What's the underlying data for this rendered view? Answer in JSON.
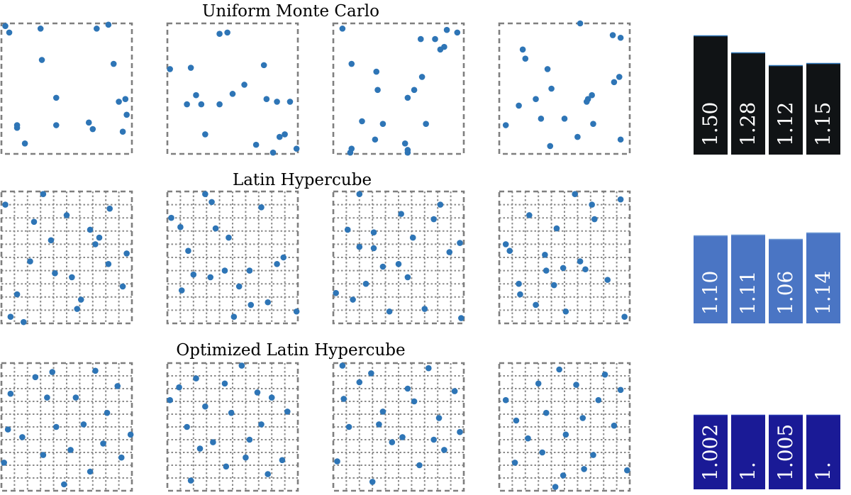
{
  "chart_data": [
    {
      "type": "scatter",
      "title": "Uniform Monte Carlo",
      "grid": false,
      "point_color": "#2e75b6",
      "xlim": [
        0,
        1
      ],
      "ylim": [
        0,
        1
      ],
      "panels": [
        {
          "x": [
            0.03,
            0.06,
            0.3,
            0.73,
            0.82,
            0.31,
            0.86,
            0.42,
            0.95,
            0.9,
            0.96,
            0.12,
            0.12,
            0.42,
            0.67,
            0.7,
            0.93,
            0.18
          ],
          "y": [
            0.98,
            0.93,
            0.96,
            0.96,
            0.99,
            0.72,
            0.69,
            0.43,
            0.42,
            0.4,
            0.3,
            0.22,
            0.2,
            0.22,
            0.24,
            0.19,
            0.17,
            0.08
          ]
        },
        {
          "x": [
            0.4,
            0.46,
            0.02,
            0.18,
            0.74,
            0.59,
            0.5,
            0.22,
            0.15,
            0.26,
            0.4,
            0.76,
            0.84,
            0.94,
            0.29,
            0.9,
            0.86,
            0.68,
            0.81,
            0.99
          ],
          "y": [
            0.92,
            0.93,
            0.65,
            0.66,
            0.68,
            0.53,
            0.46,
            0.45,
            0.38,
            0.38,
            0.38,
            0.42,
            0.4,
            0.4,
            0.15,
            0.15,
            0.13,
            0.07,
            0.01,
            0.04
          ]
        },
        {
          "x": [
            0.07,
            0.87,
            0.95,
            0.67,
            0.78,
            0.82,
            0.85,
            0.14,
            0.33,
            0.68,
            0.34,
            0.62,
            0.57,
            0.22,
            0.38,
            0.71,
            0.32,
            0.55,
            0.14,
            0.57,
            0.57,
            0.13
          ],
          "y": [
            0.96,
            0.95,
            0.93,
            0.88,
            0.88,
            0.8,
            0.82,
            0.69,
            0.63,
            0.59,
            0.49,
            0.49,
            0.43,
            0.25,
            0.23,
            0.23,
            0.11,
            0.08,
            0.04,
            0.01,
            0.03,
            0.01
          ]
        },
        {
          "x": [
            0.62,
            0.87,
            0.93,
            0.18,
            0.2,
            0.37,
            0.92,
            0.88,
            0.4,
            0.71,
            0.28,
            0.68,
            0.67,
            0.15,
            0.32,
            0.5,
            0.05,
            0.72,
            0.6,
            0.93,
            0.39
          ],
          "y": [
            1.0,
            0.91,
            0.89,
            0.8,
            0.73,
            0.65,
            0.59,
            0.55,
            0.5,
            0.45,
            0.42,
            0.42,
            0.4,
            0.37,
            0.27,
            0.27,
            0.22,
            0.23,
            0.13,
            0.11,
            0.06
          ]
        }
      ]
    },
    {
      "type": "bar",
      "series_label": "Uniform Monte Carlo",
      "color": "#101315",
      "values": [
        1.5,
        1.28,
        1.12,
        1.15
      ],
      "labels": [
        "1.50",
        "1.28",
        "1.12",
        "1.15"
      ]
    },
    {
      "type": "scatter",
      "title": "Latin Hypercube",
      "grid": true,
      "point_color": "#2e75b6",
      "xlim": [
        0,
        1
      ],
      "ylim": [
        0,
        1
      ],
      "panels": [
        {
          "x": [
            0.32,
            0.03,
            0.83,
            0.5,
            0.25,
            0.68,
            0.38,
            0.75,
            0.72,
            0.96,
            0.22,
            0.82,
            0.41,
            0.54,
            0.93,
            0.12,
            0.61,
            0.58,
            0.07,
            0.17
          ],
          "y": [
            0.98,
            0.9,
            0.87,
            0.82,
            0.77,
            0.71,
            0.63,
            0.65,
            0.6,
            0.53,
            0.47,
            0.45,
            0.38,
            0.35,
            0.28,
            0.22,
            0.18,
            0.11,
            0.05,
            0.01
          ]
        },
        {
          "x": [
            0.29,
            0.34,
            0.72,
            0.03,
            0.1,
            0.37,
            0.47,
            0.16,
            0.89,
            0.84,
            0.2,
            0.44,
            0.63,
            0.33,
            0.55,
            0.11,
            0.77,
            0.64,
            0.51,
            0.99
          ],
          "y": [
            0.98,
            0.92,
            0.88,
            0.8,
            0.73,
            0.72,
            0.65,
            0.55,
            0.5,
            0.45,
            0.37,
            0.4,
            0.4,
            0.35,
            0.28,
            0.25,
            0.16,
            0.14,
            0.05,
            0.09
          ]
        },
        {
          "x": [
            0.2,
            0.82,
            0.52,
            0.77,
            0.11,
            0.31,
            0.61,
            0.97,
            0.2,
            0.31,
            0.89,
            0.38,
            0.5,
            0.57,
            0.25,
            0.02,
            0.15,
            0.43,
            0.7,
            0.98
          ],
          "y": [
            0.98,
            0.9,
            0.83,
            0.79,
            0.71,
            0.69,
            0.65,
            0.61,
            0.58,
            0.57,
            0.54,
            0.43,
            0.45,
            0.35,
            0.3,
            0.23,
            0.18,
            0.09,
            0.11,
            0.04
          ]
        },
        {
          "x": [
            0.58,
            0.71,
            0.93,
            0.23,
            0.73,
            0.44,
            0.05,
            0.08,
            0.35,
            0.62,
            0.49,
            0.36,
            0.66,
            0.15,
            0.83,
            0.42,
            0.16,
            0.28,
            0.51,
            0.96
          ],
          "y": [
            0.98,
            0.9,
            0.94,
            0.82,
            0.79,
            0.72,
            0.6,
            0.55,
            0.52,
            0.47,
            0.42,
            0.4,
            0.41,
            0.3,
            0.33,
            0.29,
            0.22,
            0.14,
            0.09,
            0.05
          ]
        }
      ]
    },
    {
      "type": "bar",
      "series_label": "Latin Hypercube",
      "color": "#4a75c4",
      "values": [
        1.1,
        1.11,
        1.06,
        1.14
      ],
      "labels": [
        "1.10",
        "1.11",
        "1.06",
        "1.14"
      ]
    },
    {
      "type": "scatter",
      "title": "Optimized Latin Hypercube",
      "grid": true,
      "point_color": "#2e75b6",
      "xlim": [
        0,
        1
      ],
      "ylim": [
        0,
        1
      ],
      "panels": [
        {
          "x": [
            0.39,
            0.72,
            0.26,
            0.89,
            0.07,
            0.35,
            0.57,
            0.81,
            0.42,
            0.63,
            0.05,
            0.99,
            0.16,
            0.78,
            0.53,
            0.32,
            0.92,
            0.02,
            0.68,
            0.48
          ],
          "y": [
            0.93,
            0.94,
            0.89,
            0.82,
            0.76,
            0.73,
            0.73,
            0.61,
            0.5,
            0.52,
            0.48,
            0.44,
            0.42,
            0.37,
            0.32,
            0.28,
            0.26,
            0.22,
            0.15,
            0.05
          ]
        },
        {
          "x": [
            0.57,
            0.22,
            0.44,
            0.09,
            0.69,
            0.02,
            0.8,
            0.29,
            0.92,
            0.49,
            0.15,
            0.72,
            0.35,
            0.63,
            0.25,
            0.6,
            0.88,
            0.45,
            0.77,
            0.18
          ],
          "y": [
            0.98,
            0.88,
            0.84,
            0.81,
            0.77,
            0.71,
            0.73,
            0.66,
            0.62,
            0.61,
            0.5,
            0.52,
            0.38,
            0.4,
            0.33,
            0.26,
            0.24,
            0.19,
            0.13,
            0.08
          ]
        },
        {
          "x": [
            0.07,
            0.29,
            0.73,
            0.2,
            0.57,
            0.93,
            0.08,
            0.62,
            0.38,
            0.81,
            0.12,
            0.35,
            0.97,
            0.53,
            0.45,
            0.77,
            0.85,
            0.03,
            0.66,
            0.3
          ],
          "y": [
            0.98,
            0.92,
            0.96,
            0.85,
            0.8,
            0.78,
            0.72,
            0.7,
            0.62,
            0.57,
            0.5,
            0.52,
            0.46,
            0.42,
            0.38,
            0.4,
            0.32,
            0.23,
            0.2,
            0.07
          ]
        },
        {
          "x": [
            0.46,
            0.81,
            0.3,
            0.59,
            0.93,
            0.05,
            0.76,
            0.36,
            0.64,
            0.13,
            0.88,
            0.51,
            0.22,
            0.33,
            0.72,
            0.12,
            0.65,
            0.98,
            0.49,
            0.43
          ],
          "y": [
            0.95,
            0.91,
            0.84,
            0.83,
            0.79,
            0.71,
            0.71,
            0.61,
            0.57,
            0.55,
            0.51,
            0.44,
            0.41,
            0.3,
            0.28,
            0.22,
            0.17,
            0.16,
            0.12,
            0.03
          ]
        }
      ]
    },
    {
      "type": "bar",
      "series_label": "Optimized Latin Hypercube",
      "color": "#1a1a96",
      "values": [
        1.002,
        1.0,
        1.005,
        1.0
      ],
      "labels": [
        "1.002",
        "1.",
        "1.005",
        "1."
      ]
    }
  ]
}
